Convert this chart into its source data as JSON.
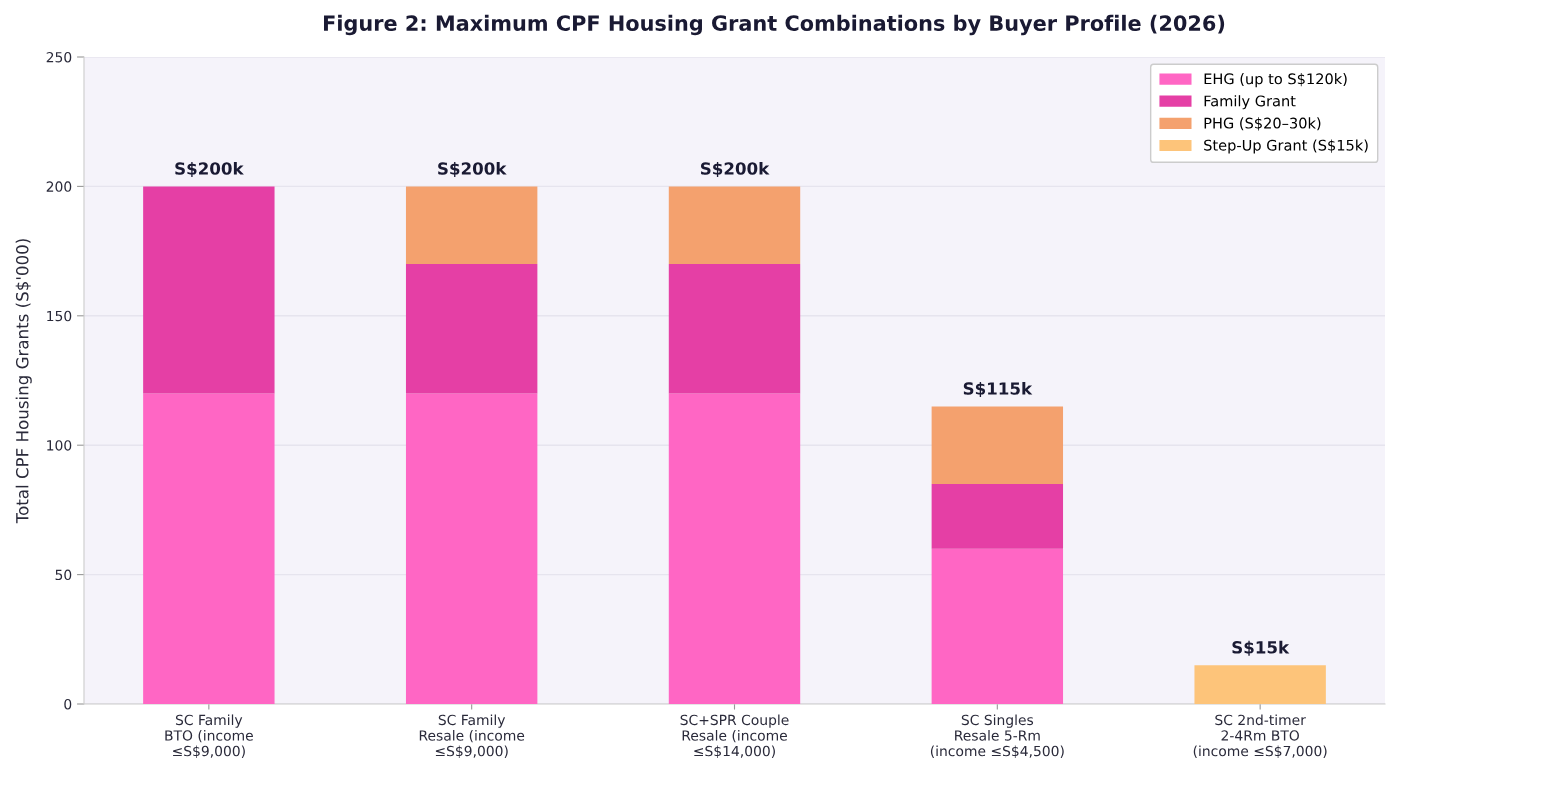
{
  "chart_data": {
    "type": "bar",
    "stacked": true,
    "title": "Figure 2: Maximum CPF Housing Grant Combinations by Buyer Profile (2026)",
    "ylabel": "Total CPF Housing Grants (S$'000)",
    "categories": [
      "SC Family\nBTO (income\n≤S$9,000)",
      "SC Family\nResale (income\n≤S$9,000)",
      "SC+SPR Couple\nResale (income\n≤S$14,000)",
      "SC Singles\nResale 5-Rm\n(income ≤S$4,500)",
      "SC 2nd-timer\n2‑4Rm BTO\n(income ≤S$7,000)"
    ],
    "series": [
      {
        "name": "EHG (up to S$120k)",
        "color": "#ff66c4",
        "values": [
          120,
          120,
          120,
          60,
          null
        ]
      },
      {
        "name": "Family Grant",
        "color": "#e53fa5",
        "values": [
          80,
          50,
          50,
          25,
          null
        ]
      },
      {
        "name": "PHG (S$20–30k)",
        "color": "#f4a16e",
        "values": [
          null,
          30,
          30,
          30,
          null
        ]
      },
      {
        "name": "Step-Up Grant (S$15k)",
        "color": "#fdc47a",
        "values": [
          null,
          null,
          null,
          null,
          15
        ]
      }
    ],
    "totals": [
      "S$200k",
      "S$200k",
      "S$200k",
      "S$115k",
      "S$15k"
    ],
    "ylim": [
      0,
      250
    ],
    "yticks": [
      0,
      50,
      100,
      150,
      200,
      250
    ],
    "grid": "y",
    "legend": "top right"
  }
}
